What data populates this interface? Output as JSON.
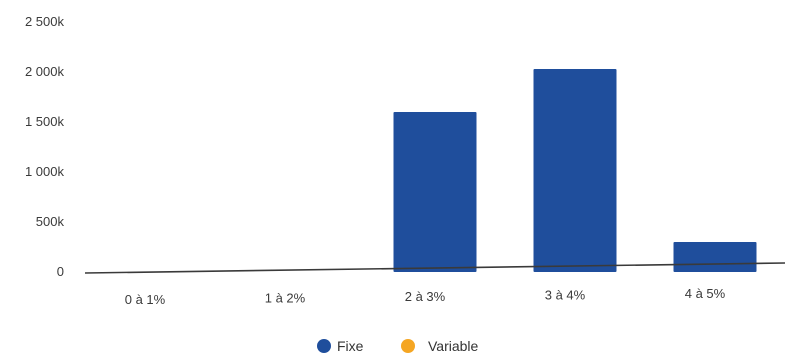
{
  "chart_data": {
    "type": "bar",
    "categories": [
      "0 à 1%",
      "1 à 2%",
      "2 à 3%",
      "3 à 4%",
      "4 à 5%"
    ],
    "series": [
      {
        "name": "Fixe",
        "color": "#1f4e9c",
        "values": [
          0,
          0,
          1600,
          2030,
          300
        ]
      },
      {
        "name": "Variable",
        "color": "#f5a623",
        "values": [
          0,
          0,
          0,
          0,
          0
        ]
      }
    ],
    "yticks": [
      "0",
      "500k",
      "1 000k",
      "1 500k",
      "2 000k",
      "2 500k"
    ],
    "ylim": [
      0,
      2500
    ],
    "legend_position": "bottom",
    "grid": false
  }
}
